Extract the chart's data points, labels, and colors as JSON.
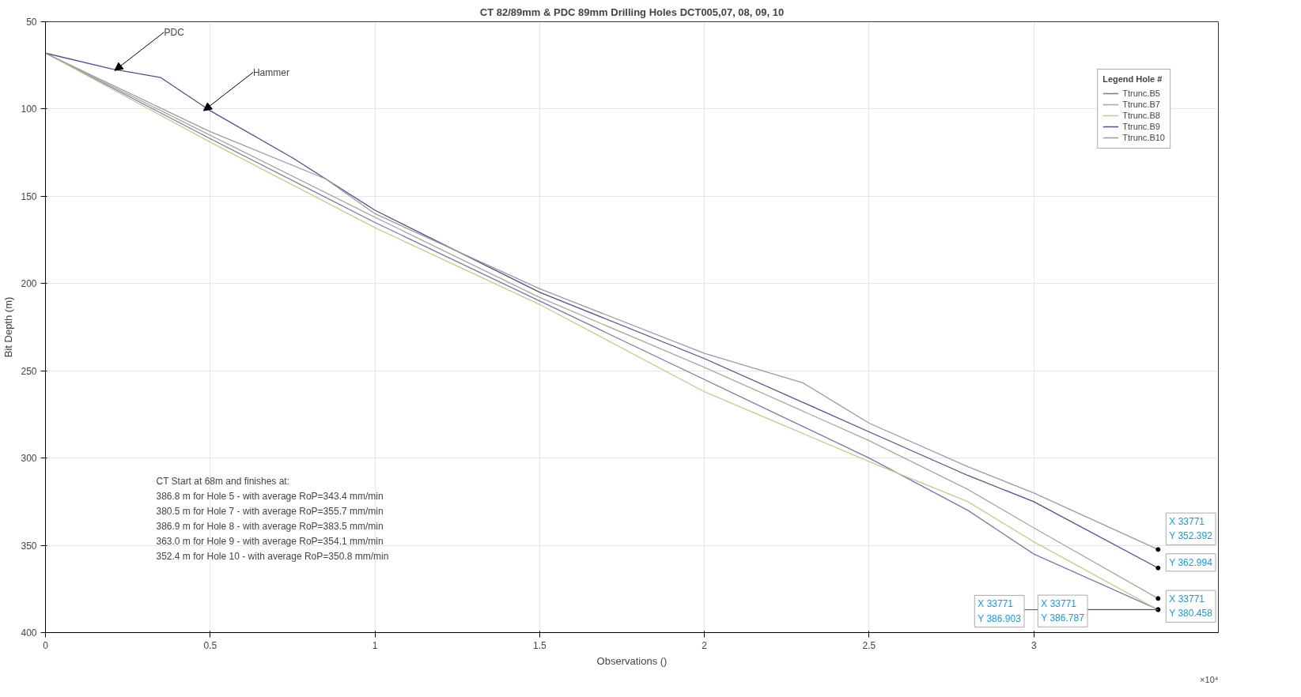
{
  "chart_data": {
    "type": "line",
    "title": "CT 82/89mm & PDC 89mm Drilling Holes DCT005,07, 08, 09, 10",
    "xlabel": "Observations ()",
    "ylabel": "Bit Depth (m)",
    "legend_title": "Legend Hole #",
    "legend": "top right",
    "grid": true,
    "marker": "none",
    "line_style": "solid",
    "xlim": [
      0,
      3.56
    ],
    "ylim": [
      400,
      50
    ],
    "xticks": [
      0,
      0.5,
      1,
      1.5,
      2,
      2.5,
      3
    ],
    "yticks": [
      50,
      100,
      150,
      200,
      250,
      300,
      350,
      400
    ],
    "series": [
      {
        "name": "Ttrunc.B5",
        "color": "#7878a8",
        "x": [
          0,
          0.5,
          1,
          1.5,
          2,
          2.5,
          2.8,
          3,
          3.3771
        ],
        "values": [
          68,
          117,
          165,
          210,
          255,
          300,
          330,
          355,
          386.8
        ]
      },
      {
        "name": "Ttrunc.B7",
        "color": "#a8a89c",
        "x": [
          0,
          0.5,
          1,
          1.5,
          2,
          2.5,
          2.8,
          3,
          3.3771
        ],
        "values": [
          68,
          115,
          162,
          208,
          248,
          290,
          318,
          340,
          380.5
        ]
      },
      {
        "name": "Ttrunc.B8",
        "color": "#c8c890",
        "x": [
          0,
          0.5,
          1,
          1.5,
          2,
          2.5,
          2.8,
          3,
          3.3771
        ],
        "values": [
          68,
          119,
          168,
          212,
          262,
          302,
          325,
          348,
          386.9
        ]
      },
      {
        "name": "Ttrunc.B9",
        "color": "#505088",
        "x": [
          0,
          0.2,
          0.35,
          0.5,
          0.75,
          1,
          1.5,
          2,
          2.5,
          2.8,
          3,
          3.3771
        ],
        "values": [
          68,
          77,
          82,
          101,
          128,
          158,
          205,
          243,
          285,
          310,
          325,
          363
        ]
      },
      {
        "name": "Ttrunc.B10",
        "color": "#9a9aa8",
        "x": [
          0,
          0.5,
          0.85,
          1,
          1.5,
          2,
          2.3,
          2.5,
          2.8,
          3,
          3.3771
        ],
        "values": [
          68,
          113,
          140,
          160,
          203,
          240,
          257,
          280,
          305,
          320,
          352.4
        ]
      }
    ],
    "annotations": [
      "CT Start at 68m and finishes at:\n386.8 m for Hole 5 - with average RoP=343.4 mm/min\n380.5 m for Hole 7 - with average RoP=355.7 mm/min\n386.9 m for Hole 8 - with average RoP=383.5 mm/min\n363.0 m for Hole 9 - with average RoP=354.1 mm/min\n352.4 m for Hole 10 - with average RoP=350.8 mm/min",
      "×10⁴",
      {
        "text": "PDC",
        "x": 0.21,
        "y": 78
      },
      {
        "text": "Hammer",
        "x": 0.48,
        "y": 101
      },
      {
        "text": "X 33771\nY 352.392",
        "x": 3.3771,
        "y": 352.392
      },
      {
        "text": "Y 362.994",
        "x": 3.3771,
        "y": 362.994
      },
      {
        "text": "X 33771\nY 380.458",
        "x": 3.3771,
        "y": 380.458
      },
      {
        "text": "X 33771\nY 386.903",
        "x": 3.3771,
        "y": 386.903
      },
      {
        "text": "X 33771\nY 386.787",
        "x": 3.3771,
        "y": 386.787
      }
    ]
  }
}
